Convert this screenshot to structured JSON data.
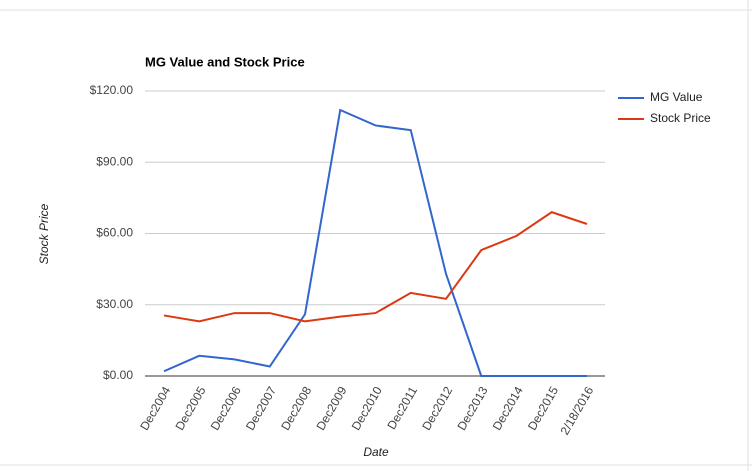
{
  "chart_data": {
    "type": "line",
    "title": "MG Value and Stock Price",
    "x_label": "Date",
    "y_label": "Stock Price",
    "categories": [
      "Dec2004",
      "Dec2005",
      "Dec2006",
      "Dec2007",
      "Dec2008",
      "Dec2009",
      "Dec2010",
      "Dec2011",
      "Dec2012",
      "Dec2013",
      "Dec2014",
      "Dec2015",
      "2/18/2016"
    ],
    "series": [
      {
        "name": "MG Value",
        "color": "#3366cc",
        "values": [
          2,
          8.5,
          7,
          4,
          26,
          112,
          105.5,
          103.5,
          43,
          0,
          0,
          0,
          0
        ]
      },
      {
        "name": "Stock Price",
        "color": "#dc3912",
        "values": [
          25.5,
          23,
          26.5,
          26.5,
          23,
          25,
          26.5,
          35,
          32.5,
          53,
          59,
          69,
          64
        ]
      }
    ],
    "ylim": [
      0,
      120
    ],
    "yticks": [
      {
        "value": 0,
        "label": "$0.00"
      },
      {
        "value": 30,
        "label": "$30.00"
      },
      {
        "value": 60,
        "label": "$60.00"
      },
      {
        "value": 90,
        "label": "$90.00"
      },
      {
        "value": 120,
        "label": "$120.00"
      }
    ],
    "grid": true,
    "legend": "right"
  }
}
